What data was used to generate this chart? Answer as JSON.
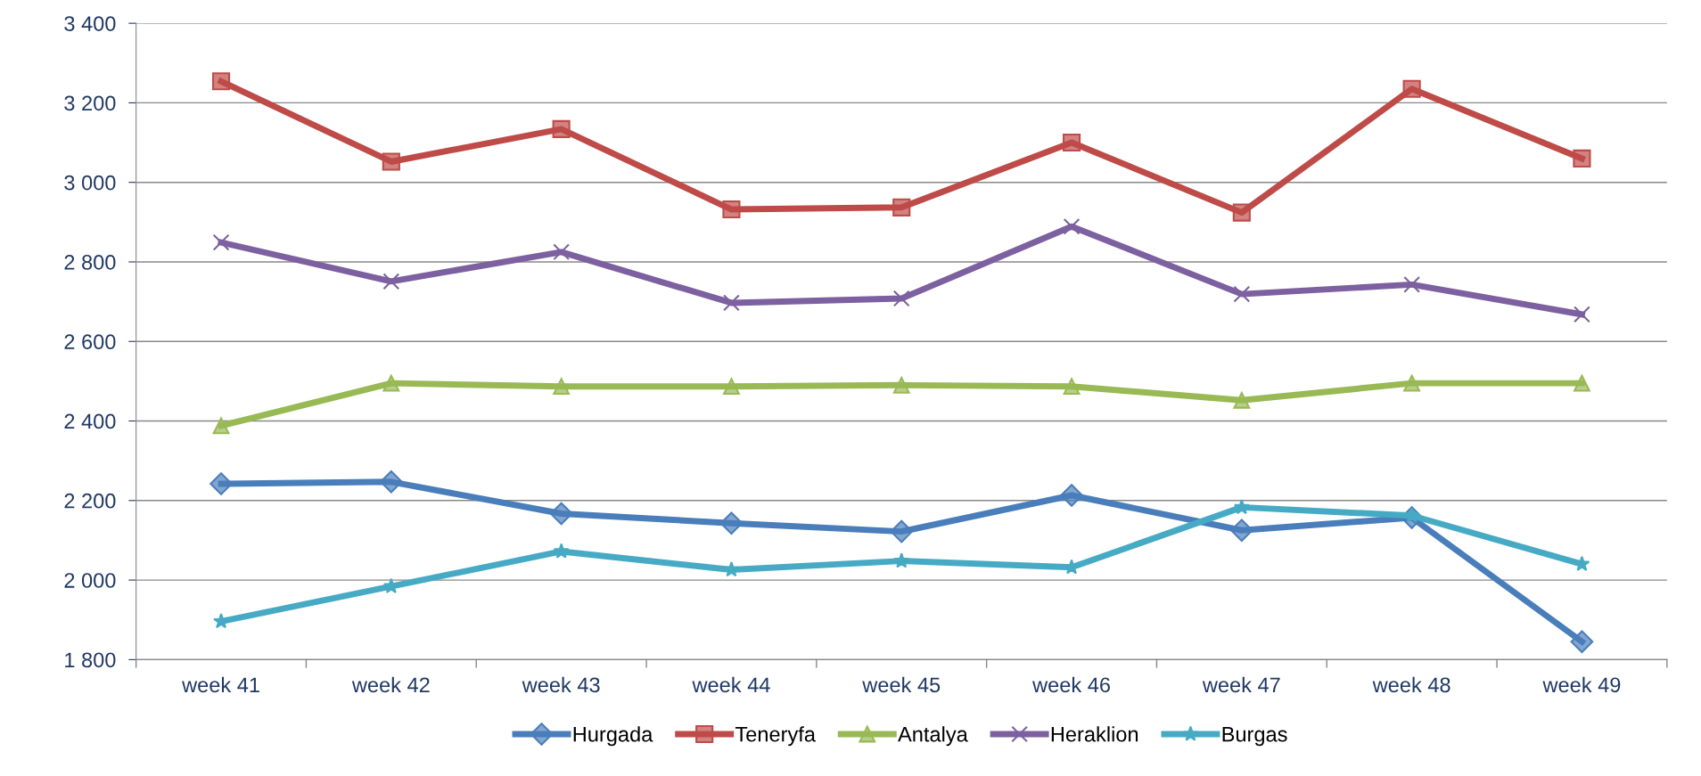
{
  "chart_data": {
    "type": "line",
    "categories": [
      "week 41",
      "week 42",
      "week 43",
      "week 44",
      "week 45",
      "week 46",
      "week 47",
      "week 48",
      "week 49"
    ],
    "series": [
      {
        "name": "Hurgada",
        "color": "#4a7ebb",
        "marker": "diamond",
        "values": [
          2242,
          2247,
          2167,
          2143,
          2122,
          2213,
          2125,
          2157,
          1845
        ]
      },
      {
        "name": "Teneryfa",
        "color": "#be4b48",
        "marker": "square",
        "values": [
          3254,
          3052,
          3134,
          2932,
          2937,
          3100,
          2924,
          3235,
          3060
        ]
      },
      {
        "name": "Antalya",
        "color": "#98b954",
        "marker": "triangle",
        "values": [
          2388,
          2495,
          2487,
          2487,
          2490,
          2487,
          2452,
          2495,
          2495
        ]
      },
      {
        "name": "Heraklion",
        "color": "#7d60a0",
        "marker": "cross",
        "values": [
          2849,
          2751,
          2825,
          2697,
          2708,
          2889,
          2719,
          2743,
          2668
        ]
      },
      {
        "name": "Burgas",
        "color": "#46aac5",
        "marker": "star",
        "values": [
          1896,
          1984,
          2072,
          2026,
          2048,
          2032,
          2183,
          2162,
          2040
        ]
      }
    ],
    "ylim": [
      1800,
      3400
    ],
    "yticks": [
      {
        "value": 1800,
        "label": "1 800"
      },
      {
        "value": 2000,
        "label": "2 000"
      },
      {
        "value": 2200,
        "label": "2 200"
      },
      {
        "value": 2400,
        "label": "2 400"
      },
      {
        "value": 2600,
        "label": "2 600"
      },
      {
        "value": 2800,
        "label": "2 800"
      },
      {
        "value": 3000,
        "label": "3 000"
      },
      {
        "value": 3200,
        "label": "3 200"
      },
      {
        "value": 3400,
        "label": "3 400"
      }
    ],
    "grid": "y",
    "legend": "bottom",
    "line_style": "solid"
  }
}
